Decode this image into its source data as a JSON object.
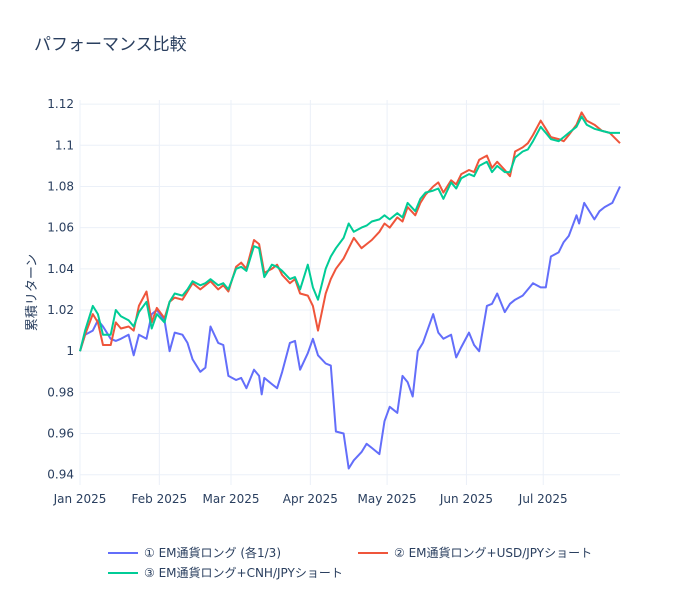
{
  "chart_data": {
    "type": "line",
    "title": "パフォーマンス比較",
    "xlabel": "",
    "ylabel": "累積リターン",
    "x_range": [
      "2025-01-01",
      "2025-07-31"
    ],
    "ylim": [
      0.935,
      1.122
    ],
    "y_ticks": [
      0.94,
      0.96,
      0.98,
      1,
      1.02,
      1.04,
      1.06,
      1.08,
      1.1,
      1.12
    ],
    "y_tick_labels": [
      "0.94",
      "0.96",
      "0.98",
      "1",
      "1.02",
      "1.04",
      "1.06",
      "1.08",
      "1.1",
      "1.12"
    ],
    "x_ticks": [
      "2025-01-01",
      "2025-02-01",
      "2025-03-01",
      "2025-04-01",
      "2025-05-01",
      "2025-06-01",
      "2025-07-01"
    ],
    "x_tick_labels": [
      "Jan 2025",
      "Feb 2025",
      "Mar 2025",
      "Apr 2025",
      "May 2025",
      "Jun 2025",
      "Jul 2025"
    ],
    "grid": true,
    "legend_position": "bottom",
    "series": [
      {
        "name": "① EM通貨ロング (各1/3)",
        "color": "#636efa",
        "points": [
          [
            "2025-01-01",
            1.0
          ],
          [
            "2025-01-03",
            1.008
          ],
          [
            "2025-01-06",
            1.01
          ],
          [
            "2025-01-08",
            1.015
          ],
          [
            "2025-01-10",
            1.012
          ],
          [
            "2025-01-13",
            1.006
          ],
          [
            "2025-01-15",
            1.005
          ],
          [
            "2025-01-17",
            1.006
          ],
          [
            "2025-01-20",
            1.008
          ],
          [
            "2025-01-22",
            0.998
          ],
          [
            "2025-01-24",
            1.008
          ],
          [
            "2025-01-27",
            1.006
          ],
          [
            "2025-01-29",
            1.018
          ],
          [
            "2025-01-31",
            1.02
          ],
          [
            "2025-02-03",
            1.015
          ],
          [
            "2025-02-05",
            1.0
          ],
          [
            "2025-02-07",
            1.009
          ],
          [
            "2025-02-10",
            1.008
          ],
          [
            "2025-02-12",
            1.004
          ],
          [
            "2025-02-14",
            0.996
          ],
          [
            "2025-02-17",
            0.99
          ],
          [
            "2025-02-19",
            0.992
          ],
          [
            "2025-02-21",
            1.012
          ],
          [
            "2025-02-24",
            1.004
          ],
          [
            "2025-02-26",
            1.003
          ],
          [
            "2025-02-28",
            0.988
          ],
          [
            "2025-03-03",
            0.986
          ],
          [
            "2025-03-05",
            0.987
          ],
          [
            "2025-03-07",
            0.982
          ],
          [
            "2025-03-10",
            0.991
          ],
          [
            "2025-03-12",
            0.988
          ],
          [
            "2025-03-13",
            0.979
          ],
          [
            "2025-03-14",
            0.987
          ],
          [
            "2025-03-17",
            0.984
          ],
          [
            "2025-03-19",
            0.982
          ],
          [
            "2025-03-21",
            0.99
          ],
          [
            "2025-03-24",
            1.004
          ],
          [
            "2025-03-26",
            1.005
          ],
          [
            "2025-03-28",
            0.991
          ],
          [
            "2025-03-31",
            0.999
          ],
          [
            "2025-04-02",
            1.006
          ],
          [
            "2025-04-04",
            0.998
          ],
          [
            "2025-04-07",
            0.994
          ],
          [
            "2025-04-09",
            0.993
          ],
          [
            "2025-04-11",
            0.961
          ],
          [
            "2025-04-14",
            0.96
          ],
          [
            "2025-04-16",
            0.943
          ],
          [
            "2025-04-18",
            0.947
          ],
          [
            "2025-04-21",
            0.951
          ],
          [
            "2025-04-23",
            0.955
          ],
          [
            "2025-04-25",
            0.953
          ],
          [
            "2025-04-28",
            0.95
          ],
          [
            "2025-04-30",
            0.966
          ],
          [
            "2025-05-02",
            0.973
          ],
          [
            "2025-05-05",
            0.97
          ],
          [
            "2025-05-07",
            0.988
          ],
          [
            "2025-05-09",
            0.985
          ],
          [
            "2025-05-11",
            0.978
          ],
          [
            "2025-05-13",
            1.0
          ],
          [
            "2025-05-15",
            1.004
          ],
          [
            "2025-05-19",
            1.018
          ],
          [
            "2025-05-21",
            1.009
          ],
          [
            "2025-05-23",
            1.006
          ],
          [
            "2025-05-26",
            1.008
          ],
          [
            "2025-05-28",
            0.997
          ],
          [
            "2025-05-30",
            1.002
          ],
          [
            "2025-06-02",
            1.009
          ],
          [
            "2025-06-04",
            1.003
          ],
          [
            "2025-06-06",
            1.0
          ],
          [
            "2025-06-09",
            1.022
          ],
          [
            "2025-06-11",
            1.023
          ],
          [
            "2025-06-13",
            1.028
          ],
          [
            "2025-06-16",
            1.019
          ],
          [
            "2025-06-18",
            1.023
          ],
          [
            "2025-06-20",
            1.025
          ],
          [
            "2025-06-23",
            1.027
          ],
          [
            "2025-06-25",
            1.03
          ],
          [
            "2025-06-27",
            1.033
          ],
          [
            "2025-06-30",
            1.031
          ],
          [
            "2025-07-02",
            1.031
          ],
          [
            "2025-07-04",
            1.046
          ],
          [
            "2025-07-07",
            1.048
          ],
          [
            "2025-07-09",
            1.053
          ],
          [
            "2025-07-11",
            1.056
          ],
          [
            "2025-07-14",
            1.066
          ],
          [
            "2025-07-15",
            1.062
          ],
          [
            "2025-07-17",
            1.072
          ],
          [
            "2025-07-21",
            1.064
          ],
          [
            "2025-07-23",
            1.068
          ],
          [
            "2025-07-25",
            1.07
          ],
          [
            "2025-07-28",
            1.072
          ],
          [
            "2025-07-31",
            1.08
          ]
        ]
      },
      {
        "name": "② EM通貨ロング+USD/JPYショート",
        "color": "#ef553b",
        "points": [
          [
            "2025-01-01",
            1.0
          ],
          [
            "2025-01-03",
            1.008
          ],
          [
            "2025-01-06",
            1.018
          ],
          [
            "2025-01-08",
            1.014
          ],
          [
            "2025-01-10",
            1.003
          ],
          [
            "2025-01-13",
            1.003
          ],
          [
            "2025-01-15",
            1.014
          ],
          [
            "2025-01-17",
            1.011
          ],
          [
            "2025-01-20",
            1.012
          ],
          [
            "2025-01-22",
            1.01
          ],
          [
            "2025-01-24",
            1.022
          ],
          [
            "2025-01-27",
            1.029
          ],
          [
            "2025-01-29",
            1.014
          ],
          [
            "2025-01-31",
            1.021
          ],
          [
            "2025-02-03",
            1.016
          ],
          [
            "2025-02-05",
            1.024
          ],
          [
            "2025-02-07",
            1.026
          ],
          [
            "2025-02-10",
            1.025
          ],
          [
            "2025-02-12",
            1.029
          ],
          [
            "2025-02-14",
            1.033
          ],
          [
            "2025-02-17",
            1.03
          ],
          [
            "2025-02-19",
            1.032
          ],
          [
            "2025-02-21",
            1.034
          ],
          [
            "2025-02-24",
            1.03
          ],
          [
            "2025-02-26",
            1.032
          ],
          [
            "2025-02-28",
            1.029
          ],
          [
            "2025-03-03",
            1.041
          ],
          [
            "2025-03-05",
            1.043
          ],
          [
            "2025-03-07",
            1.04
          ],
          [
            "2025-03-10",
            1.054
          ],
          [
            "2025-03-12",
            1.052
          ],
          [
            "2025-03-14",
            1.038
          ],
          [
            "2025-03-17",
            1.04
          ],
          [
            "2025-03-19",
            1.042
          ],
          [
            "2025-03-21",
            1.037
          ],
          [
            "2025-03-24",
            1.033
          ],
          [
            "2025-03-26",
            1.035
          ],
          [
            "2025-03-28",
            1.028
          ],
          [
            "2025-03-31",
            1.027
          ],
          [
            "2025-04-02",
            1.022
          ],
          [
            "2025-04-04",
            1.01
          ],
          [
            "2025-04-07",
            1.028
          ],
          [
            "2025-04-09",
            1.035
          ],
          [
            "2025-04-11",
            1.04
          ],
          [
            "2025-04-14",
            1.045
          ],
          [
            "2025-04-16",
            1.05
          ],
          [
            "2025-04-18",
            1.055
          ],
          [
            "2025-04-21",
            1.05
          ],
          [
            "2025-04-23",
            1.052
          ],
          [
            "2025-04-25",
            1.054
          ],
          [
            "2025-04-28",
            1.058
          ],
          [
            "2025-04-30",
            1.062
          ],
          [
            "2025-05-02",
            1.06
          ],
          [
            "2025-05-05",
            1.065
          ],
          [
            "2025-05-07",
            1.063
          ],
          [
            "2025-05-09",
            1.07
          ],
          [
            "2025-05-12",
            1.066
          ],
          [
            "2025-05-14",
            1.072
          ],
          [
            "2025-05-16",
            1.076
          ],
          [
            "2025-05-19",
            1.08
          ],
          [
            "2025-05-21",
            1.082
          ],
          [
            "2025-05-23",
            1.077
          ],
          [
            "2025-05-26",
            1.083
          ],
          [
            "2025-05-28",
            1.081
          ],
          [
            "2025-05-30",
            1.086
          ],
          [
            "2025-06-02",
            1.088
          ],
          [
            "2025-06-04",
            1.087
          ],
          [
            "2025-06-06",
            1.093
          ],
          [
            "2025-06-09",
            1.095
          ],
          [
            "2025-06-11",
            1.089
          ],
          [
            "2025-06-13",
            1.092
          ],
          [
            "2025-06-16",
            1.088
          ],
          [
            "2025-06-18",
            1.085
          ],
          [
            "2025-06-20",
            1.097
          ],
          [
            "2025-06-23",
            1.099
          ],
          [
            "2025-06-25",
            1.101
          ],
          [
            "2025-06-27",
            1.105
          ],
          [
            "2025-06-30",
            1.112
          ],
          [
            "2025-07-02",
            1.108
          ],
          [
            "2025-07-04",
            1.104
          ],
          [
            "2025-07-07",
            1.103
          ],
          [
            "2025-07-09",
            1.102
          ],
          [
            "2025-07-11",
            1.105
          ],
          [
            "2025-07-14",
            1.11
          ],
          [
            "2025-07-16",
            1.116
          ],
          [
            "2025-07-18",
            1.112
          ],
          [
            "2025-07-21",
            1.11
          ],
          [
            "2025-07-24",
            1.107
          ],
          [
            "2025-07-27",
            1.106
          ],
          [
            "2025-07-31",
            1.101
          ]
        ]
      },
      {
        "name": "③ EM通貨ロング+CNH/JPYショート",
        "color": "#00cc96",
        "points": [
          [
            "2025-01-01",
            1.0
          ],
          [
            "2025-01-03",
            1.01
          ],
          [
            "2025-01-06",
            1.022
          ],
          [
            "2025-01-08",
            1.018
          ],
          [
            "2025-01-10",
            1.008
          ],
          [
            "2025-01-13",
            1.008
          ],
          [
            "2025-01-15",
            1.02
          ],
          [
            "2025-01-17",
            1.017
          ],
          [
            "2025-01-20",
            1.015
          ],
          [
            "2025-01-22",
            1.012
          ],
          [
            "2025-01-24",
            1.019
          ],
          [
            "2025-01-27",
            1.024
          ],
          [
            "2025-01-29",
            1.011
          ],
          [
            "2025-01-31",
            1.018
          ],
          [
            "2025-02-03",
            1.014
          ],
          [
            "2025-02-05",
            1.024
          ],
          [
            "2025-02-07",
            1.028
          ],
          [
            "2025-02-10",
            1.027
          ],
          [
            "2025-02-12",
            1.03
          ],
          [
            "2025-02-14",
            1.034
          ],
          [
            "2025-02-17",
            1.032
          ],
          [
            "2025-02-19",
            1.033
          ],
          [
            "2025-02-21",
            1.035
          ],
          [
            "2025-02-24",
            1.032
          ],
          [
            "2025-02-26",
            1.033
          ],
          [
            "2025-02-28",
            1.03
          ],
          [
            "2025-03-03",
            1.04
          ],
          [
            "2025-03-05",
            1.041
          ],
          [
            "2025-03-07",
            1.039
          ],
          [
            "2025-03-10",
            1.051
          ],
          [
            "2025-03-12",
            1.05
          ],
          [
            "2025-03-14",
            1.036
          ],
          [
            "2025-03-17",
            1.042
          ],
          [
            "2025-03-19",
            1.041
          ],
          [
            "2025-03-21",
            1.039
          ],
          [
            "2025-03-24",
            1.035
          ],
          [
            "2025-03-26",
            1.036
          ],
          [
            "2025-03-28",
            1.03
          ],
          [
            "2025-03-31",
            1.042
          ],
          [
            "2025-04-02",
            1.031
          ],
          [
            "2025-04-04",
            1.025
          ],
          [
            "2025-04-07",
            1.04
          ],
          [
            "2025-04-09",
            1.046
          ],
          [
            "2025-04-11",
            1.05
          ],
          [
            "2025-04-14",
            1.055
          ],
          [
            "2025-04-16",
            1.062
          ],
          [
            "2025-04-18",
            1.058
          ],
          [
            "2025-04-21",
            1.06
          ],
          [
            "2025-04-23",
            1.061
          ],
          [
            "2025-04-25",
            1.063
          ],
          [
            "2025-04-28",
            1.064
          ],
          [
            "2025-04-30",
            1.066
          ],
          [
            "2025-05-02",
            1.064
          ],
          [
            "2025-05-05",
            1.067
          ],
          [
            "2025-05-07",
            1.065
          ],
          [
            "2025-05-09",
            1.072
          ],
          [
            "2025-05-12",
            1.068
          ],
          [
            "2025-05-14",
            1.074
          ],
          [
            "2025-05-16",
            1.077
          ],
          [
            "2025-05-19",
            1.078
          ],
          [
            "2025-05-21",
            1.079
          ],
          [
            "2025-05-23",
            1.074
          ],
          [
            "2025-05-26",
            1.082
          ],
          [
            "2025-05-28",
            1.079
          ],
          [
            "2025-05-30",
            1.084
          ],
          [
            "2025-06-02",
            1.086
          ],
          [
            "2025-06-04",
            1.085
          ],
          [
            "2025-06-06",
            1.09
          ],
          [
            "2025-06-09",
            1.092
          ],
          [
            "2025-06-11",
            1.087
          ],
          [
            "2025-06-13",
            1.09
          ],
          [
            "2025-06-16",
            1.087
          ],
          [
            "2025-06-18",
            1.087
          ],
          [
            "2025-06-20",
            1.094
          ],
          [
            "2025-06-23",
            1.097
          ],
          [
            "2025-06-25",
            1.098
          ],
          [
            "2025-06-27",
            1.102
          ],
          [
            "2025-06-30",
            1.109
          ],
          [
            "2025-07-02",
            1.106
          ],
          [
            "2025-07-04",
            1.103
          ],
          [
            "2025-07-07",
            1.102
          ],
          [
            "2025-07-09",
            1.104
          ],
          [
            "2025-07-11",
            1.106
          ],
          [
            "2025-07-14",
            1.109
          ],
          [
            "2025-07-16",
            1.114
          ],
          [
            "2025-07-18",
            1.11
          ],
          [
            "2025-07-21",
            1.108
          ],
          [
            "2025-07-24",
            1.107
          ],
          [
            "2025-07-27",
            1.106
          ],
          [
            "2025-07-31",
            1.106
          ]
        ]
      }
    ]
  }
}
